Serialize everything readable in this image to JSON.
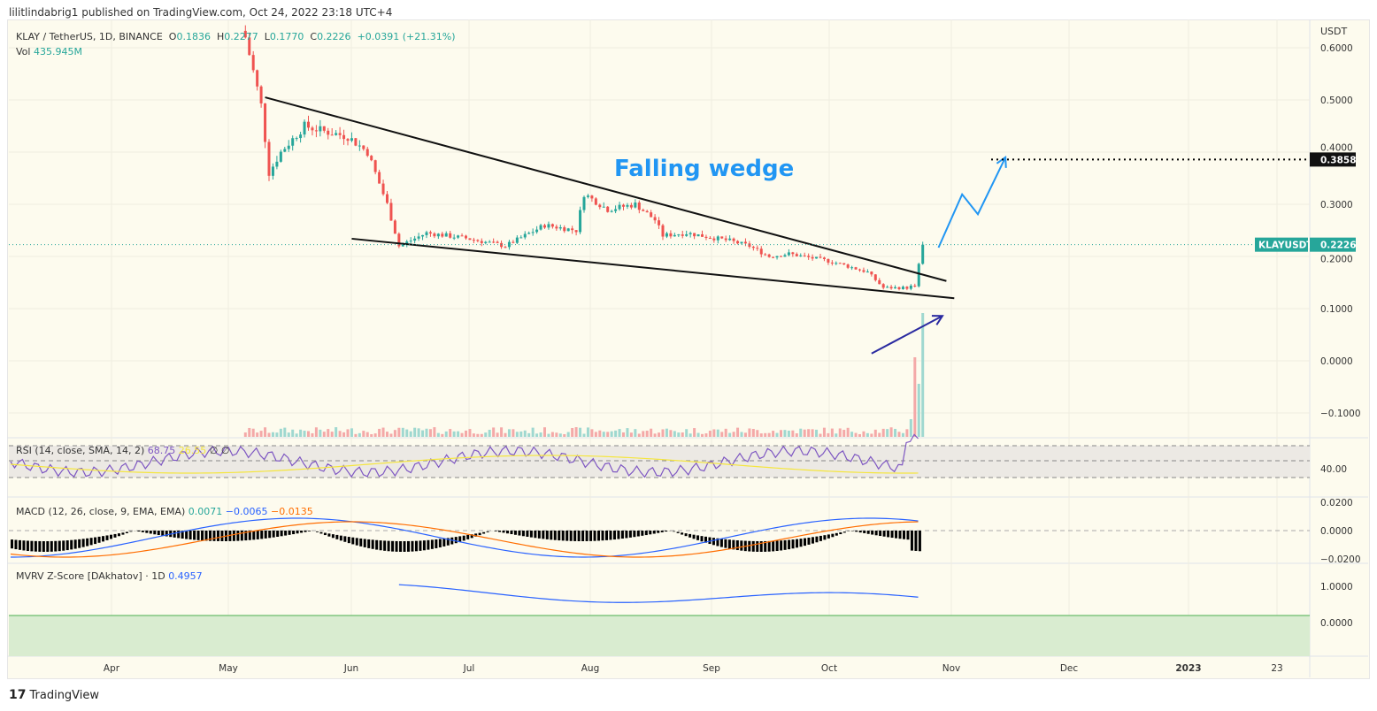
{
  "publisher_line": "lilitlindabrig1 published on TradingView.com, Oct 24, 2022 23:18 UTC+4",
  "header": {
    "symbol": "KLAY / TetherUS, 1D, BINANCE",
    "o_label": "O",
    "open": "0.1836",
    "h_label": "H",
    "high": "0.2277",
    "l_label": "L",
    "low": "0.1770",
    "c_label": "C",
    "close": "0.2226",
    "change": "+0.0391 (+21.31%)",
    "vol_label": "Vol",
    "vol": "435.945M"
  },
  "indicators": {
    "rsi": {
      "label": "RSI (14, close, SMA, 14, 2)",
      "v1": "68.75",
      "v2": "26.55",
      "v3": "∅ ∅",
      "tick": "40.00"
    },
    "macd": {
      "label": "MACD (12, 26, close, 9, EMA, EMA)",
      "hist": "0.0071",
      "macd": "−0.0065",
      "signal": "−0.0135",
      "ticks": [
        "0.0200",
        "0.0000",
        "−0.0200"
      ]
    },
    "mvrv": {
      "label": "MVRV Z-Score [DAkhatov] · 1D",
      "value": "0.4957",
      "ticks": [
        "1.0000",
        "0.0000"
      ]
    }
  },
  "footer": {
    "brand": "TradingView"
  },
  "colors": {
    "up": "#26a69a",
    "down": "#ef5350",
    "bg": "#fdfbee",
    "rsi": "#7e57c2",
    "rsi_ma": "#f5e63d",
    "macd": "#2962ff",
    "signal": "#ff6d00",
    "annotation": "#2196f3"
  },
  "chart_data": {
    "type": "candlestick",
    "currency": "USDT",
    "y_ticks": [
      "0.6000",
      "0.5000",
      "0.4000",
      "0.3000",
      "0.2000",
      "0.1000",
      "0.0000",
      "−0.1000"
    ],
    "x_ticks": [
      "Apr",
      "May",
      "Jun",
      "Jul",
      "Aug",
      "Sep",
      "Oct",
      "Nov",
      "Dec",
      "2023",
      "23"
    ],
    "last_price_label": "KLAYUSDT",
    "last_price": "0.2226",
    "target_label": "0.3858",
    "target": 0.3858,
    "annotation_text": "Falling wedge",
    "closes": [
      [
        "2022-05-05",
        0.62
      ],
      [
        "2022-05-09",
        0.49
      ],
      [
        "2022-05-11",
        0.36
      ],
      [
        "2022-05-14",
        0.4
      ],
      [
        "2022-05-20",
        0.45
      ],
      [
        "2022-05-25",
        0.44
      ],
      [
        "2022-05-31",
        0.43
      ],
      [
        "2022-06-05",
        0.4
      ],
      [
        "2022-06-10",
        0.3
      ],
      [
        "2022-06-13",
        0.22
      ],
      [
        "2022-06-20",
        0.245
      ],
      [
        "2022-06-30",
        0.235
      ],
      [
        "2022-07-10",
        0.22
      ],
      [
        "2022-07-20",
        0.26
      ],
      [
        "2022-07-28",
        0.25
      ],
      [
        "2022-07-30",
        0.32
      ],
      [
        "2022-08-05",
        0.29
      ],
      [
        "2022-08-12",
        0.3
      ],
      [
        "2022-08-17",
        0.27
      ],
      [
        "2022-08-19",
        0.24
      ],
      [
        "2022-08-25",
        0.245
      ],
      [
        "2022-09-05",
        0.23
      ],
      [
        "2022-09-10",
        0.22
      ],
      [
        "2022-09-15",
        0.2
      ],
      [
        "2022-09-20",
        0.205
      ],
      [
        "2022-10-01",
        0.19
      ],
      [
        "2022-10-10",
        0.17
      ],
      [
        "2022-10-14",
        0.14
      ],
      [
        "2022-10-20",
        0.14
      ],
      [
        "2022-10-22",
        0.145
      ],
      [
        "2022-10-23",
        0.1836
      ],
      [
        "2022-10-24",
        0.2226
      ]
    ],
    "drawings": {
      "wedge_upper": [
        [
          "2022-05-10",
          0.505
        ],
        [
          "2022-10-30",
          0.153
        ]
      ],
      "wedge_lower": [
        [
          "2022-06-01",
          0.234
        ],
        [
          "2022-11-01",
          0.12
        ]
      ],
      "projection": [
        [
          "2022-10-28",
          0.217
        ],
        [
          "2022-11-03",
          0.319
        ],
        [
          "2022-11-07",
          0.281
        ],
        [
          "2022-11-14",
          0.39
        ]
      ],
      "arrow": [
        [
          "2022-10-11",
          0.014
        ],
        [
          "2022-10-29",
          0.086
        ]
      ]
    },
    "grid": true
  }
}
